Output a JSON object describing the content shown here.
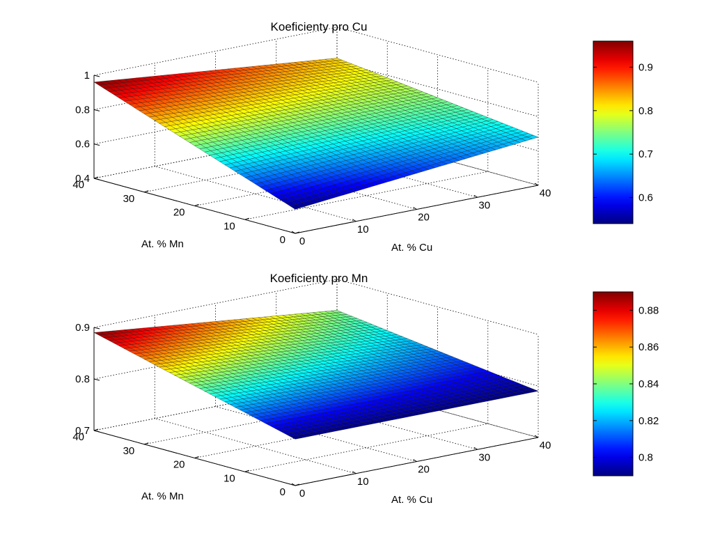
{
  "chart_data": [
    {
      "type": "surface",
      "title": "Koeficienty pro Cu",
      "xlabel": "At. % Cu",
      "ylabel": "At. % Mn",
      "zlabel": "",
      "xlim": [
        0,
        40
      ],
      "ylim": [
        0,
        40
      ],
      "zlim": [
        0.4,
        1
      ],
      "xticks": [
        0,
        10,
        20,
        30,
        40
      ],
      "yticks": [
        0,
        10,
        20,
        30,
        40
      ],
      "zticks": [
        0.4,
        0.6,
        0.8,
        1
      ],
      "corners": {
        "cu0_mn0": 0.54,
        "cu40_mn0": 0.68,
        "cu0_mn40": 0.96,
        "cu40_mn40": 0.82
      },
      "colorbar": {
        "range": [
          0.54,
          0.96
        ],
        "ticks": [
          0.6,
          0.7,
          0.8,
          0.9
        ]
      },
      "grid": true,
      "colormap": "jet"
    },
    {
      "type": "surface",
      "title": "Koeficienty pro Mn",
      "xlabel": "At. % Cu",
      "ylabel": "At. % Mn",
      "zlabel": "",
      "xlim": [
        0,
        40
      ],
      "ylim": [
        0,
        40
      ],
      "zlim": [
        0.7,
        0.9
      ],
      "xticks": [
        0,
        10,
        20,
        30,
        40
      ],
      "yticks": [
        0,
        10,
        20,
        30,
        40
      ],
      "zticks": [
        0.7,
        0.8,
        0.9
      ],
      "corners": {
        "cu0_mn0": 0.79,
        "cu40_mn0": 0.79,
        "cu0_mn40": 0.89,
        "cu40_mn40": 0.84
      },
      "colorbar": {
        "range": [
          0.79,
          0.89
        ],
        "ticks": [
          0.8,
          0.82,
          0.84,
          0.86,
          0.88
        ]
      },
      "grid": true,
      "colormap": "jet"
    }
  ]
}
